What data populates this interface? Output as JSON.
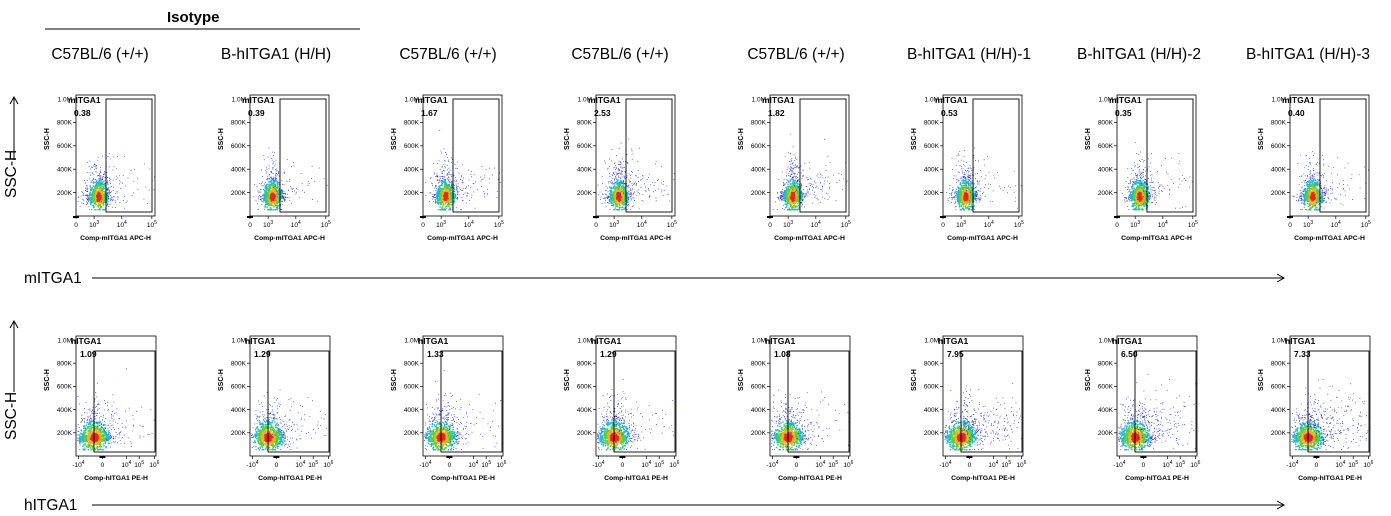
{
  "isotype_label": "Isotype",
  "column_headers": [
    "C57BL/6 (+/+)",
    "B-hITGA1 (H/H)",
    "C57BL/6 (+/+)",
    "C57BL/6 (+/+)",
    "C57BL/6 (+/+)",
    "B-hITGA1 (H/H)-1",
    "B-hITGA1 (H/H)-2",
    "B-hITGA1 (H/H)-3"
  ],
  "row_axis_label": "SSC-H",
  "chart_data": [
    {
      "type": "scatter",
      "row_label": "mITGA1",
      "gate_name": "mITGA1",
      "xlabel": "Comp-mITGA1 APC-H",
      "ylabel": "SSC-H",
      "x_scale": "log",
      "x_ticks": [
        "0",
        "10^3",
        "10^4",
        "10^5"
      ],
      "y_ticks": [
        "200K",
        "400K",
        "600K",
        "800K",
        "1.0M"
      ],
      "ylim": [
        0,
        1000000
      ],
      "gate_percent": [
        0.38,
        0.39,
        1.67,
        2.53,
        1.82,
        0.53,
        0.35,
        0.4
      ]
    },
    {
      "type": "scatter",
      "row_label": "hITGA1",
      "gate_name": "hITGA1",
      "xlabel": "Comp-hITGA1 PE-H",
      "ylabel": "SSC-H",
      "x_scale": "log",
      "x_ticks": [
        "-10^4",
        "0",
        "10^4",
        "10^5",
        "10^6"
      ],
      "y_ticks": [
        "200K",
        "400K",
        "600K",
        "800K",
        "1.0M"
      ],
      "ylim": [
        0,
        1000000
      ],
      "gate_percent": [
        1.09,
        1.29,
        1.33,
        1.29,
        1.08,
        7.95,
        6.5,
        7.33
      ]
    }
  ]
}
